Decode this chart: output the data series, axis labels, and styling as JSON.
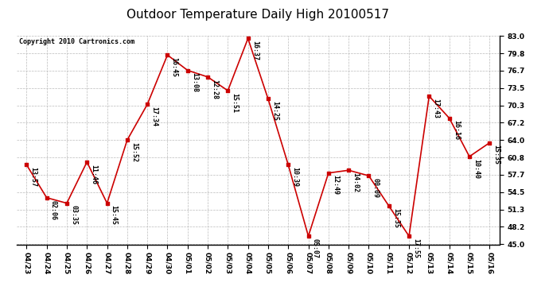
{
  "title": "Outdoor Temperature Daily High 20100517",
  "copyright": "Copyright 2010 Cartronics.com",
  "dates": [
    "04/23",
    "04/24",
    "04/25",
    "04/26",
    "04/27",
    "04/28",
    "04/29",
    "04/30",
    "05/01",
    "05/02",
    "05/03",
    "05/04",
    "05/05",
    "05/06",
    "05/07",
    "05/08",
    "05/09",
    "05/10",
    "05/11",
    "05/12",
    "05/13",
    "05/14",
    "05/15",
    "05/16"
  ],
  "values": [
    59.5,
    53.5,
    52.5,
    60.0,
    52.5,
    64.0,
    70.5,
    79.5,
    76.7,
    75.5,
    73.0,
    82.5,
    71.5,
    59.5,
    46.5,
    58.0,
    58.5,
    57.5,
    52.0,
    46.5,
    72.0,
    68.0,
    61.0,
    63.5
  ],
  "time_labels": [
    "13:57",
    "02:06",
    "03:35",
    "11:46",
    "15:45",
    "15:52",
    "17:34",
    "16:45",
    "13:08",
    "12:28",
    "15:51",
    "16:37",
    "14:25",
    "10:39",
    "05:07",
    "12:49",
    "14:02",
    "00:09",
    "15:35",
    "17:55",
    "17:43",
    "16:16",
    "10:40",
    "15:35"
  ],
  "ylim": [
    45.0,
    83.0
  ],
  "yticks": [
    45.0,
    48.2,
    51.3,
    54.5,
    57.7,
    60.8,
    64.0,
    67.2,
    70.3,
    73.5,
    76.7,
    79.8,
    83.0
  ],
  "line_color": "#cc0000",
  "marker_color": "#cc0000",
  "bg_color": "#ffffff",
  "grid_color": "#bbbbbb",
  "title_fontsize": 11,
  "label_fontsize": 6.0,
  "tick_fontsize": 6.5,
  "copyright_fontsize": 6.0
}
